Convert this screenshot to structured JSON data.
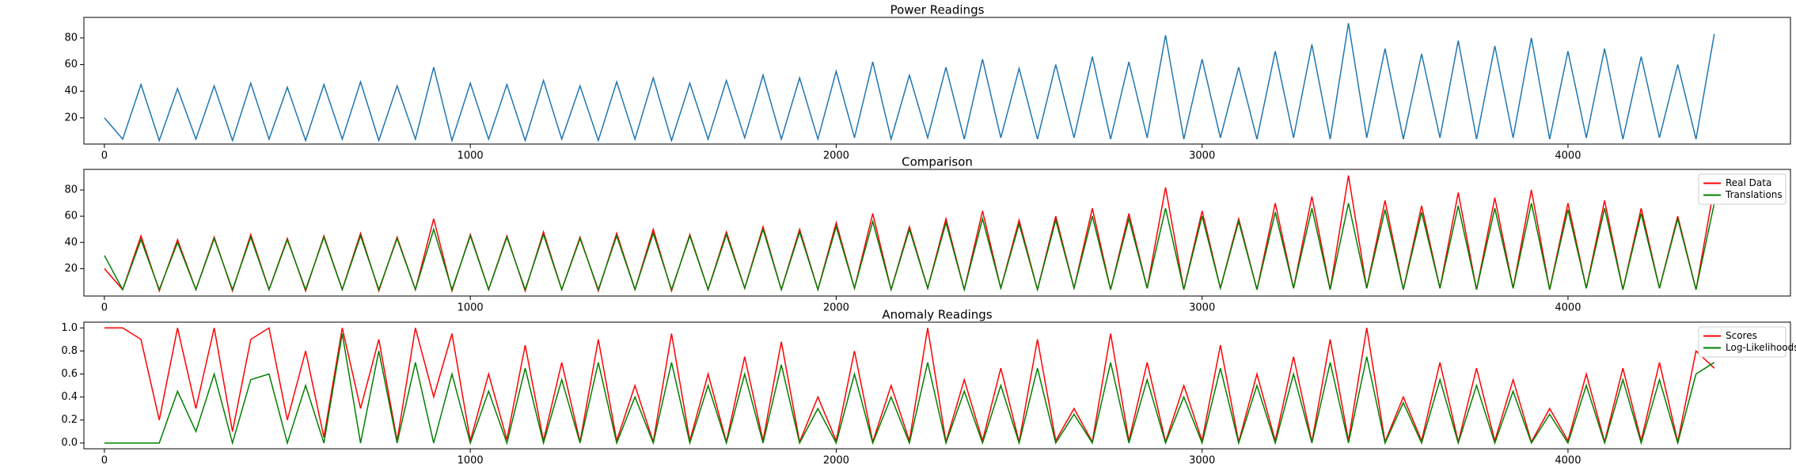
{
  "chart_data": [
    {
      "type": "line",
      "title": "Power Readings",
      "x": [
        0,
        50,
        100,
        150,
        200,
        250,
        300,
        350,
        400,
        450,
        500,
        550,
        600,
        650,
        700,
        750,
        800,
        850,
        900,
        950,
        1000,
        1050,
        1100,
        1150,
        1200,
        1250,
        1300,
        1350,
        1400,
        1450,
        1500,
        1550,
        1600,
        1650,
        1700,
        1750,
        1800,
        1850,
        1900,
        1950,
        2000,
        2050,
        2100,
        2150,
        2200,
        2250,
        2300,
        2350,
        2400,
        2450,
        2500,
        2550,
        2600,
        2650,
        2700,
        2750,
        2800,
        2850,
        2900,
        2950,
        3000,
        3050,
        3100,
        3150,
        3200,
        3250,
        3300,
        3350,
        3400,
        3450,
        3500,
        3550,
        3600,
        3650,
        3700,
        3750,
        3800,
        3850,
        3900,
        3950,
        4000,
        4050,
        4100,
        4150,
        4200,
        4250,
        4300,
        4350,
        4400
      ],
      "series": [
        {
          "color": "#1f77b4",
          "values": [
            20,
            4,
            45,
            3,
            42,
            4,
            44,
            3,
            46,
            4,
            43,
            3,
            45,
            4,
            47,
            3,
            44,
            4,
            58,
            3,
            46,
            4,
            45,
            3,
            48,
            4,
            44,
            3,
            47,
            4,
            50,
            3,
            46,
            4,
            48,
            5,
            52,
            4,
            50,
            4,
            55,
            5,
            62,
            4,
            52,
            5,
            58,
            4,
            64,
            5,
            57,
            4,
            60,
            5,
            66,
            4,
            62,
            5,
            82,
            4,
            64,
            5,
            58,
            4,
            70,
            5,
            75,
            4,
            91,
            5,
            72,
            4,
            68,
            5,
            78,
            4,
            74,
            5,
            80,
            4,
            70,
            5,
            72,
            4,
            66,
            5,
            60,
            4,
            83
          ]
        }
      ],
      "xlim": [
        -56,
        4608
      ],
      "xticks": [
        0,
        1000,
        2000,
        3000,
        4000
      ],
      "ylim": [
        0.3,
        95.4
      ],
      "yticks": [
        20,
        40,
        60,
        80
      ]
    },
    {
      "type": "line",
      "title": "Comparison",
      "x": [
        0,
        50,
        100,
        150,
        200,
        250,
        300,
        350,
        400,
        450,
        500,
        550,
        600,
        650,
        700,
        750,
        800,
        850,
        900,
        950,
        1000,
        1050,
        1100,
        1150,
        1200,
        1250,
        1300,
        1350,
        1400,
        1450,
        1500,
        1550,
        1600,
        1650,
        1700,
        1750,
        1800,
        1850,
        1900,
        1950,
        2000,
        2050,
        2100,
        2150,
        2200,
        2250,
        2300,
        2350,
        2400,
        2450,
        2500,
        2550,
        2600,
        2650,
        2700,
        2750,
        2800,
        2850,
        2900,
        2950,
        3000,
        3050,
        3100,
        3150,
        3200,
        3250,
        3300,
        3350,
        3400,
        3450,
        3500,
        3550,
        3600,
        3650,
        3700,
        3750,
        3800,
        3850,
        3900,
        3950,
        4000,
        4050,
        4100,
        4150,
        4200,
        4250,
        4300,
        4350,
        4400
      ],
      "series": [
        {
          "name": "Real Data",
          "color": "#ff0000",
          "values": [
            20,
            4,
            45,
            3,
            42,
            4,
            44,
            3,
            46,
            4,
            43,
            3,
            45,
            4,
            47,
            3,
            44,
            4,
            58,
            3,
            46,
            4,
            45,
            3,
            48,
            4,
            44,
            3,
            47,
            4,
            50,
            3,
            46,
            4,
            48,
            5,
            52,
            4,
            50,
            4,
            55,
            5,
            62,
            4,
            52,
            5,
            58,
            4,
            64,
            5,
            57,
            4,
            60,
            5,
            66,
            4,
            62,
            5,
            82,
            4,
            64,
            5,
            58,
            4,
            70,
            5,
            75,
            4,
            91,
            5,
            72,
            4,
            68,
            5,
            78,
            4,
            74,
            5,
            80,
            4,
            70,
            5,
            72,
            4,
            66,
            5,
            60,
            4,
            83
          ]
        },
        {
          "name": "Translations",
          "color": "#008000",
          "values": [
            30,
            4,
            42,
            4,
            40,
            4,
            43,
            4,
            44,
            4,
            42,
            4,
            44,
            4,
            45,
            4,
            43,
            4,
            50,
            4,
            45,
            4,
            44,
            4,
            46,
            4,
            43,
            4,
            45,
            4,
            47,
            4,
            45,
            4,
            46,
            5,
            50,
            4,
            48,
            4,
            52,
            5,
            56,
            4,
            50,
            5,
            55,
            4,
            58,
            5,
            54,
            4,
            57,
            5,
            60,
            4,
            58,
            5,
            66,
            4,
            60,
            5,
            56,
            4,
            63,
            5,
            66,
            4,
            70,
            5,
            65,
            4,
            63,
            5,
            68,
            4,
            66,
            5,
            70,
            4,
            65,
            5,
            66,
            4,
            62,
            5,
            58,
            4,
            70
          ]
        }
      ],
      "legend": "upper right",
      "xlim": [
        -56,
        4608
      ],
      "xticks": [
        0,
        1000,
        2000,
        3000,
        4000
      ],
      "ylim": [
        -0.9,
        95.7
      ],
      "yticks": [
        20,
        40,
        60,
        80
      ]
    },
    {
      "type": "line",
      "title": "Anomaly Readings",
      "x": [
        0,
        50,
        100,
        150,
        200,
        250,
        300,
        350,
        400,
        450,
        500,
        550,
        600,
        650,
        700,
        750,
        800,
        850,
        900,
        950,
        1000,
        1050,
        1100,
        1150,
        1200,
        1250,
        1300,
        1350,
        1400,
        1450,
        1500,
        1550,
        1600,
        1650,
        1700,
        1750,
        1800,
        1850,
        1900,
        1950,
        2000,
        2050,
        2100,
        2150,
        2200,
        2250,
        2300,
        2350,
        2400,
        2450,
        2500,
        2550,
        2600,
        2650,
        2700,
        2750,
        2800,
        2850,
        2900,
        2950,
        3000,
        3050,
        3100,
        3150,
        3200,
        3250,
        3300,
        3350,
        3400,
        3450,
        3500,
        3550,
        3600,
        3650,
        3700,
        3750,
        3800,
        3850,
        3900,
        3950,
        4000,
        4050,
        4100,
        4150,
        4200,
        4250,
        4300,
        4350,
        4400
      ],
      "series": [
        {
          "name": "Scores",
          "color": "#ff0000",
          "values": [
            1,
            1,
            0.9,
            0.2,
            1,
            0.3,
            1,
            0.1,
            0.9,
            1,
            0.2,
            0.8,
            0.05,
            1,
            0.3,
            0.9,
            0.02,
            1,
            0.4,
            0.95,
            0.02,
            0.6,
            0.03,
            0.85,
            0.02,
            0.7,
            0.01,
            0.9,
            0.02,
            0.5,
            0.01,
            0.95,
            0.02,
            0.6,
            0.01,
            0.75,
            0.02,
            0.88,
            0.01,
            0.4,
            0.02,
            0.8,
            0.01,
            0.5,
            0.02,
            1,
            0.01,
            0.55,
            0.02,
            0.65,
            0.01,
            0.9,
            0.02,
            0.3,
            0.01,
            0.95,
            0.02,
            0.7,
            0.01,
            0.5,
            0.02,
            0.85,
            0.01,
            0.6,
            0.02,
            0.75,
            0.01,
            0.9,
            0.02,
            1,
            0.01,
            0.4,
            0.02,
            0.7,
            0.01,
            0.65,
            0.02,
            0.55,
            0.01,
            0.3,
            0.02,
            0.6,
            0.01,
            0.65,
            0.02,
            0.7,
            0.01,
            0.8,
            0.65
          ]
        },
        {
          "name": "Log-Likelihoods",
          "color": "#008000",
          "values": [
            0,
            0,
            0,
            0,
            0.45,
            0.1,
            0.6,
            0,
            0.55,
            0.6,
            0,
            0.5,
            0,
            0.95,
            0,
            0.8,
            0,
            0.7,
            0,
            0.6,
            0,
            0.45,
            0,
            0.65,
            0,
            0.55,
            0,
            0.7,
            0,
            0.4,
            0,
            0.7,
            0,
            0.5,
            0,
            0.6,
            0,
            0.68,
            0,
            0.3,
            0,
            0.6,
            0,
            0.4,
            0,
            0.7,
            0,
            0.45,
            0,
            0.5,
            0,
            0.65,
            0,
            0.25,
            0,
            0.7,
            0,
            0.55,
            0,
            0.4,
            0,
            0.65,
            0,
            0.5,
            0,
            0.6,
            0,
            0.7,
            0,
            0.75,
            0,
            0.35,
            0,
            0.55,
            0,
            0.5,
            0,
            0.45,
            0,
            0.25,
            0,
            0.5,
            0,
            0.55,
            0,
            0.55,
            0,
            0.6,
            0.7
          ]
        }
      ],
      "legend": "upper right",
      "xlim": [
        -56,
        4608
      ],
      "xticks": [
        0,
        1000,
        2000,
        3000,
        4000
      ],
      "ylim": [
        -0.05,
        1.05
      ],
      "yticks": [
        {
          "value": 0,
          "label": "0.0"
        },
        0.2,
        0.4,
        0.6,
        0.8,
        {
          "value": 1,
          "label": "1.0"
        }
      ]
    }
  ]
}
